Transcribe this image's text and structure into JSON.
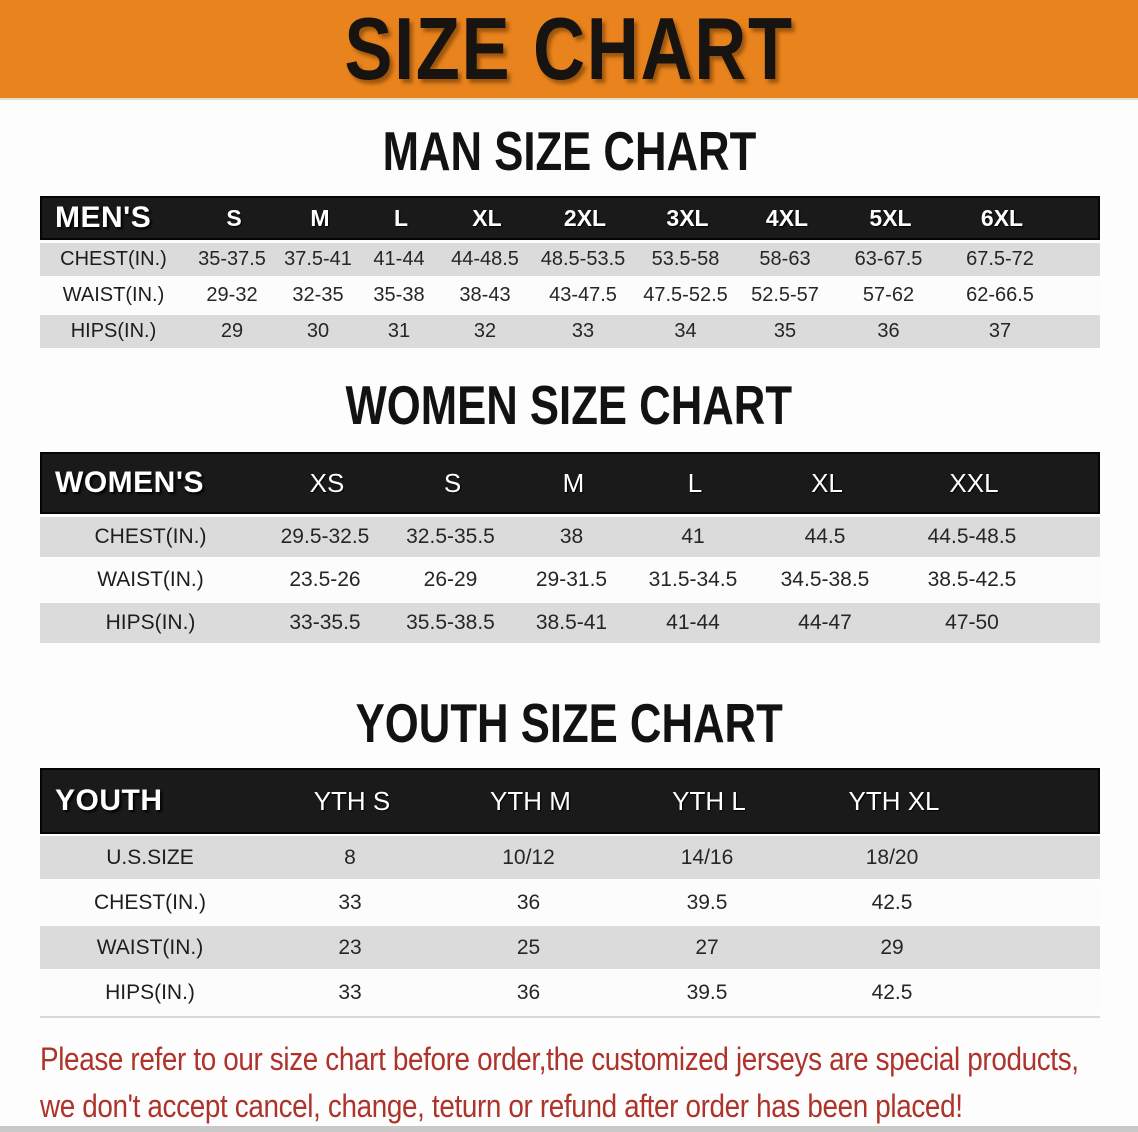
{
  "banner": {
    "title": "SIZE CHART",
    "bg_color": "#E9831D",
    "text_color": "#171310"
  },
  "colors": {
    "table_header_bg": "#1a1a1a",
    "row_gray": "#dbdbdb",
    "row_white": "#fcfcfc",
    "disclaimer_red": "#AE332A"
  },
  "sections": [
    {
      "key": "men",
      "heading": "MAN SIZE CHART",
      "table": {
        "label": "MEN'S",
        "columns": [
          "S",
          "M",
          "L",
          "XL",
          "2XL",
          "3XL",
          "4XL",
          "5XL",
          "6XL"
        ],
        "rows": [
          {
            "label": "CHEST(IN.)",
            "values": [
              "35-37.5",
              "37.5-41",
              "41-44",
              "44-48.5",
              "48.5-53.5",
              "53.5-58",
              "58-63",
              "63-67.5",
              "67.5-72"
            ]
          },
          {
            "label": "WAIST(IN.)",
            "values": [
              "29-32",
              "32-35",
              "35-38",
              "38-43",
              "43-47.5",
              "47.5-52.5",
              "52.5-57",
              "57-62",
              "62-66.5"
            ]
          },
          {
            "label": "HIPS(IN.)",
            "values": [
              "29",
              "30",
              "31",
              "32",
              "33",
              "34",
              "35",
              "36",
              "37"
            ]
          }
        ]
      }
    },
    {
      "key": "women",
      "heading": "WOMEN SIZE CHART",
      "table": {
        "label": "WOMEN'S",
        "columns": [
          "XS",
          "S",
          "M",
          "L",
          "XL",
          "XXL"
        ],
        "rows": [
          {
            "label": "CHEST(IN.)",
            "values": [
              "29.5-32.5",
              "32.5-35.5",
              "38",
              "41",
              "44.5",
              "44.5-48.5"
            ]
          },
          {
            "label": "WAIST(IN.)",
            "values": [
              "23.5-26",
              "26-29",
              "29-31.5",
              "31.5-34.5",
              "34.5-38.5",
              "38.5-42.5"
            ]
          },
          {
            "label": "HIPS(IN.)",
            "values": [
              "33-35.5",
              "35.5-38.5",
              "38.5-41",
              "41-44",
              "44-47",
              "47-50"
            ]
          }
        ]
      }
    },
    {
      "key": "youth",
      "heading": "YOUTH SIZE CHART",
      "table": {
        "label": "YOUTH",
        "columns": [
          "YTH S",
          "YTH M",
          "YTH L",
          "YTH XL"
        ],
        "rows": [
          {
            "label": "U.S.SIZE",
            "values": [
              "8",
              "10/12",
              "14/16",
              "18/20"
            ]
          },
          {
            "label": "CHEST(IN.)",
            "values": [
              "33",
              "36",
              "39.5",
              "42.5"
            ]
          },
          {
            "label": "WAIST(IN.)",
            "values": [
              "23",
              "25",
              "27",
              "29"
            ]
          },
          {
            "label": "HIPS(IN.)",
            "values": [
              "33",
              "36",
              "39.5",
              "42.5"
            ]
          }
        ]
      }
    }
  ],
  "disclaimer": {
    "line1": "Please refer to our size chart before order,the customized jerseys are special products,",
    "line2": "we don't accept cancel, change, teturn or refund after order has been placed!"
  }
}
